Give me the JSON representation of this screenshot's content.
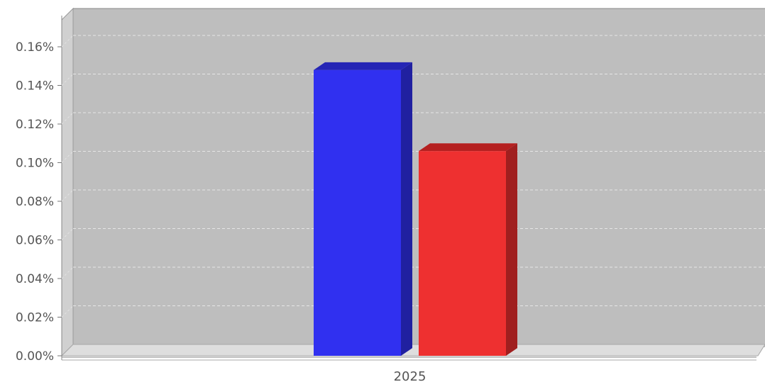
{
  "chart_data": {
    "type": "bar",
    "categories": [
      "2025"
    ],
    "series": [
      {
        "values": [
          0.148
        ],
        "color": "#3030f0",
        "side_color": "#2020a0",
        "top_color": "#2525b5"
      },
      {
        "values": [
          0.106
        ],
        "color": "#ee3030",
        "side_color": "#a01f1f",
        "top_color": "#b52020"
      }
    ],
    "y_ticks": [
      "0.00%",
      "0.02%",
      "0.04%",
      "0.06%",
      "0.08%",
      "0.10%",
      "0.12%",
      "0.14%",
      "0.16%"
    ],
    "ylim": [
      0,
      0.17
    ],
    "grid": true,
    "legend": "none",
    "plot_color": "#bebebe",
    "gridline_color": "#e6e6e6"
  }
}
